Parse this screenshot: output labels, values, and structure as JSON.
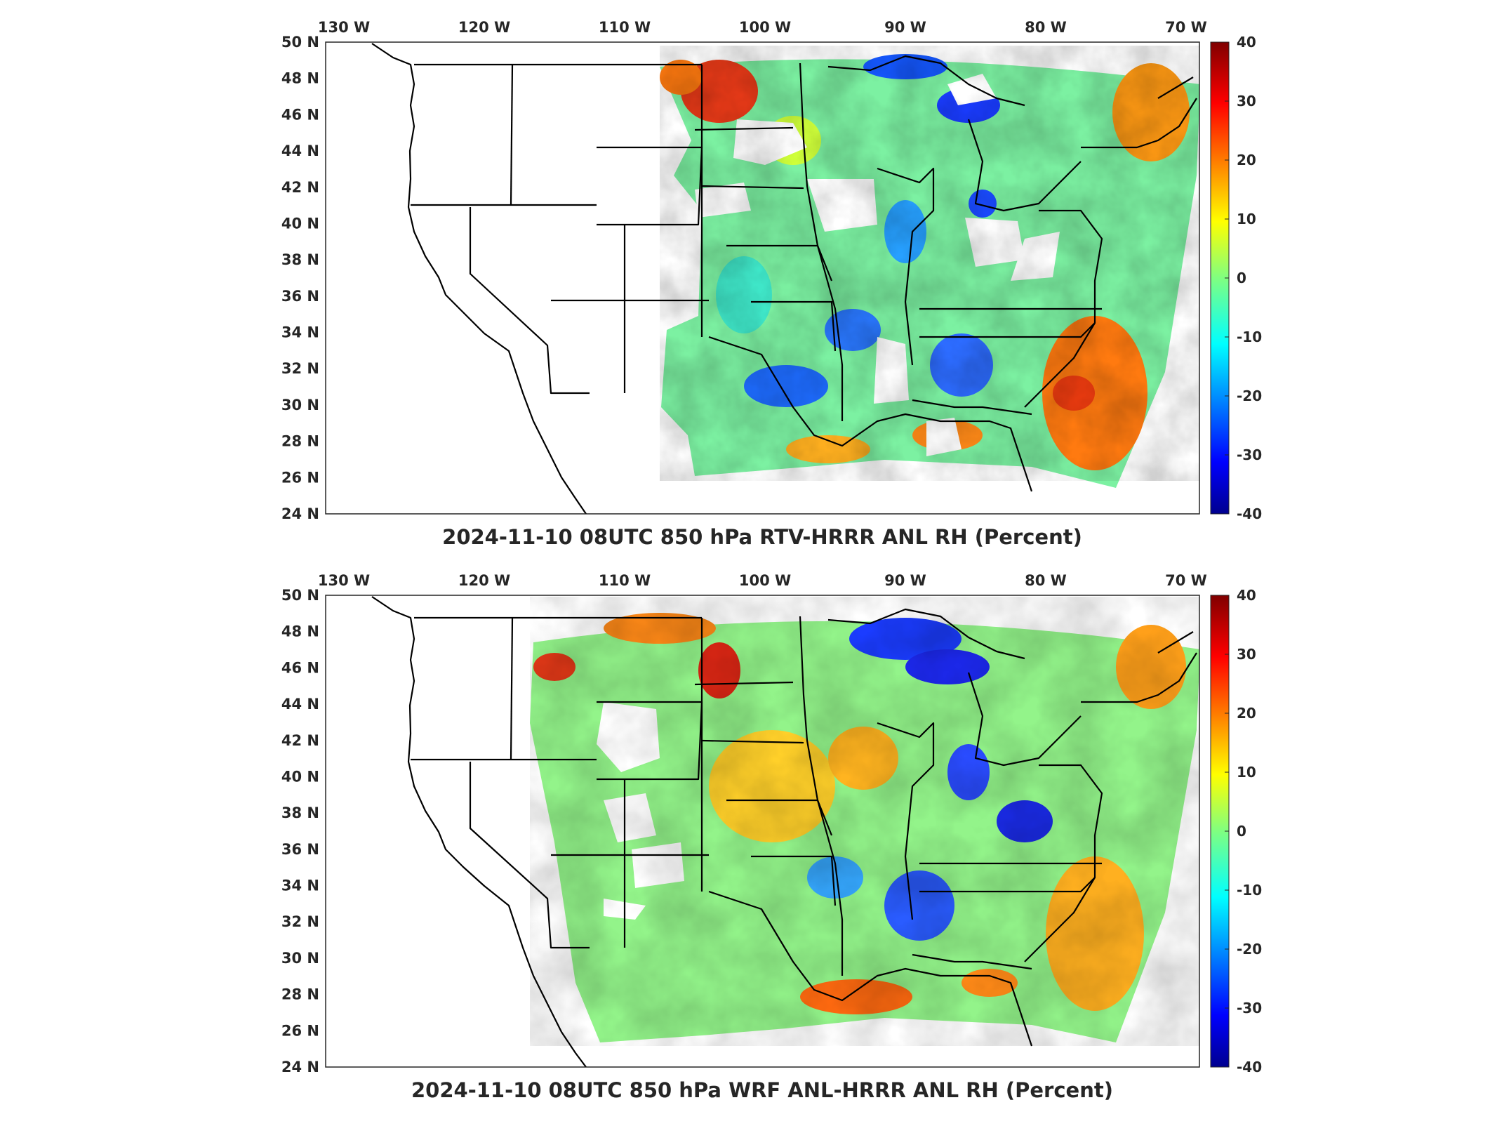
{
  "panels": [
    {
      "id": "rtv",
      "title": "2024-11-10 08UTC 850 hPa RTV-HRRR ANL RH (Percent)",
      "lon_labels": [
        "130 W",
        "120 W",
        "110 W",
        "100 W",
        "90 W",
        "80 W",
        "70 W"
      ],
      "lat_labels": [
        "50 N",
        "48 N",
        "46 N",
        "44 N",
        "42 N",
        "40 N",
        "38 N",
        "36 N",
        "34 N",
        "32 N",
        "30 N",
        "28 N",
        "26 N",
        "24 N"
      ],
      "colorbar_ticks": [
        "40",
        "30",
        "20",
        "10",
        "0",
        "-10",
        "-20",
        "-30",
        "-40"
      ]
    },
    {
      "id": "wrf",
      "title": "2024-11-10 08UTC 850 hPa WRF ANL-HRRR ANL RH (Percent)",
      "lon_labels": [
        "130 W",
        "120 W",
        "110 W",
        "100 W",
        "90 W",
        "80 W",
        "70 W"
      ],
      "lat_labels": [
        "50 N",
        "48 N",
        "46 N",
        "44 N",
        "42 N",
        "40 N",
        "38 N",
        "36 N",
        "34 N",
        "32 N",
        "30 N",
        "28 N",
        "26 N",
        "24 N"
      ],
      "colorbar_ticks": [
        "40",
        "30",
        "20",
        "10",
        "0",
        "-10",
        "-20",
        "-30",
        "-40"
      ]
    }
  ],
  "colormap": {
    "name": "jet",
    "range": [
      -40,
      40
    ],
    "colors": [
      "#00008f",
      "#0000ff",
      "#0080ff",
      "#00ffff",
      "#80ff80",
      "#ffff00",
      "#ff8000",
      "#ff0000",
      "#800000"
    ]
  }
}
